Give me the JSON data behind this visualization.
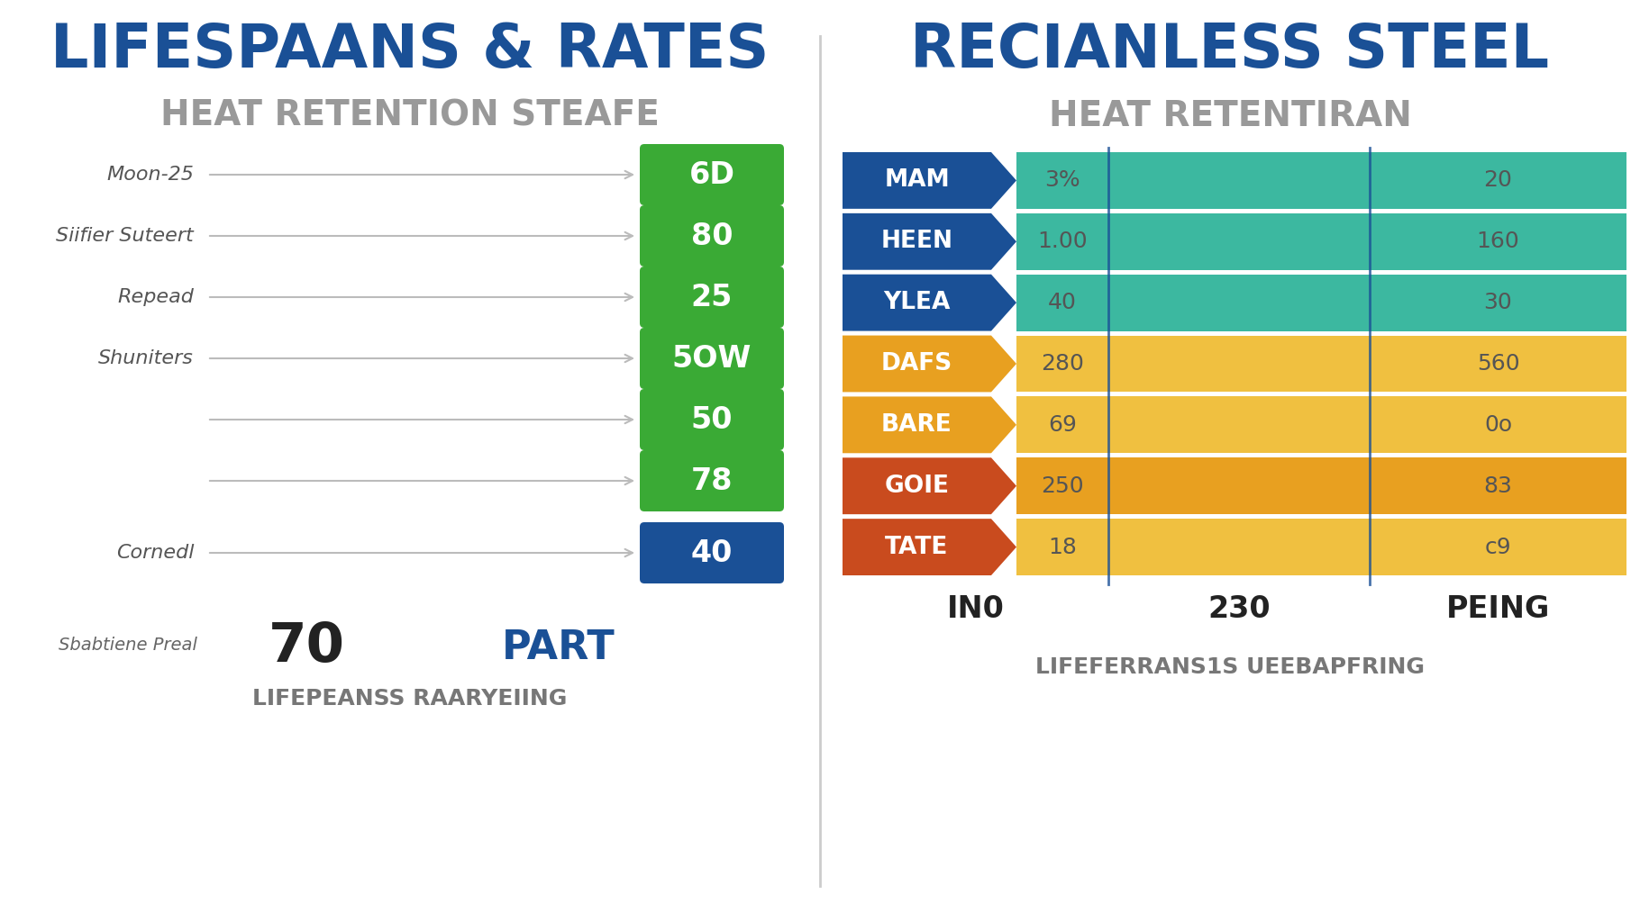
{
  "left_title": "LIFESPAANS & RATES",
  "left_subtitle": "HEAT RETENTION STEAFE",
  "left_labels": [
    "Moon-25",
    "Siifier Suteert",
    "Repead",
    "Shuniters",
    "",
    "",
    "Cornedl"
  ],
  "left_values": [
    "6D",
    "80",
    "25",
    "5OW",
    "50",
    "78",
    "40"
  ],
  "left_value_colors": [
    "#3aaa35",
    "#3aaa35",
    "#3aaa35",
    "#3aaa35",
    "#3aaa35",
    "#3aaa35",
    "#1a5096"
  ],
  "left_bottom_label": "Sbabtiene Preal",
  "left_bottom_num": "70",
  "left_bottom_text": "PART",
  "left_bottom_footer": "LIFEPEANSS RAARYEIING",
  "right_title": "RECIANLESS STEEL",
  "right_subtitle": "HEAT RETENTIRAN",
  "right_rows": [
    {
      "label": "MAM",
      "val1": "3%",
      "val2": "20",
      "label_color": "#1a5096",
      "bar_color": "#3cb8a0"
    },
    {
      "label": "HEEN",
      "val1": "1.00",
      "val2": "160",
      "label_color": "#1a5096",
      "bar_color": "#3cb8a0"
    },
    {
      "label": "YLEA",
      "val1": "40",
      "val2": "30",
      "label_color": "#1a5096",
      "bar_color": "#3cb8a0"
    },
    {
      "label": "DAFS",
      "val1": "280",
      "val2": "560",
      "label_color": "#e8a020",
      "bar_color": "#f0c040"
    },
    {
      "label": "BARE",
      "val1": "69",
      "val2": "0o",
      "label_color": "#e8a020",
      "bar_color": "#f0c040"
    },
    {
      "label": "GOIE",
      "val1": "250",
      "val2": "83",
      "label_color": "#c94b1e",
      "bar_color": "#e8a020"
    },
    {
      "label": "TATE",
      "val1": "18",
      "val2": "c9",
      "label_color": "#c94b1e",
      "bar_color": "#f0c040"
    }
  ],
  "right_col1_header": "IN0",
  "right_col2_header": "230",
  "right_col3_header": "PEING",
  "right_footer": "LIFEFERRANS1S UEEBAPFRING",
  "bg_color": "#ffffff",
  "title_color": "#1a5096",
  "subtitle_color": "#999999",
  "divider_color": "#cccccc"
}
